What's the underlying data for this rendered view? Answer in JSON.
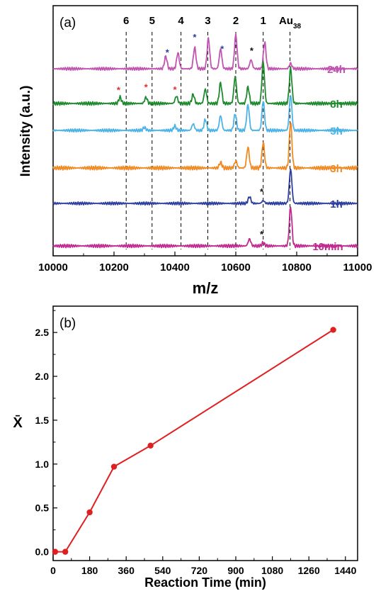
{
  "chart_data": [
    {
      "panel": "(a)",
      "type": "line",
      "xlabel": "m/z",
      "ylabel": "Intensity (a.u.)",
      "xlim": [
        10000,
        11000
      ],
      "x_ticks": [
        "10000",
        "10200",
        "10400",
        "10600",
        "10800",
        "11000"
      ],
      "grid": false,
      "peak_markers": [
        {
          "label": "6",
          "x": 10240
        },
        {
          "label": "5",
          "x": 10325
        },
        {
          "label": "4",
          "x": 10420
        },
        {
          "label": "3",
          "x": 10508
        },
        {
          "label": "2",
          "x": 10600
        },
        {
          "label": "1",
          "x": 10690
        },
        {
          "label": "Au",
          "sub": "38",
          "x": 10778
        }
      ],
      "series": [
        {
          "name": "24h",
          "color": "#c054b0",
          "peaks": [
            [
              10370,
              0.35
            ],
            [
              10410,
              0.45
            ],
            [
              10465,
              0.6
            ],
            [
              10510,
              0.85
            ],
            [
              10550,
              0.55
            ],
            [
              10600,
              0.95
            ],
            [
              10650,
              0.25
            ],
            [
              10695,
              0.75
            ],
            [
              10780,
              0.15
            ]
          ]
        },
        {
          "name": "8h",
          "color": "#1e8a2e",
          "peaks": [
            [
              10220,
              0.15
            ],
            [
              10305,
              0.15
            ],
            [
              10405,
              0.18
            ],
            [
              10460,
              0.22
            ],
            [
              10500,
              0.35
            ],
            [
              10550,
              0.5
            ],
            [
              10598,
              0.65
            ],
            [
              10640,
              0.4
            ],
            [
              10690,
              1.0
            ],
            [
              10780,
              0.85
            ]
          ]
        },
        {
          "name": "5h",
          "color": "#4db3e6",
          "peaks": [
            [
              10300,
              0.08
            ],
            [
              10400,
              0.12
            ],
            [
              10460,
              0.18
            ],
            [
              10500,
              0.3
            ],
            [
              10550,
              0.4
            ],
            [
              10598,
              0.45
            ],
            [
              10640,
              0.7
            ],
            [
              10690,
              0.8
            ],
            [
              10780,
              0.95
            ]
          ]
        },
        {
          "name": "3h",
          "color": "#f08a24",
          "peaks": [
            [
              10550,
              0.12
            ],
            [
              10600,
              0.15
            ],
            [
              10640,
              0.45
            ],
            [
              10690,
              0.55
            ],
            [
              10780,
              1.0
            ]
          ]
        },
        {
          "name": "1h",
          "color": "#2c3e9e",
          "peaks": [
            [
              10645,
              0.2
            ],
            [
              10690,
              0.08
            ],
            [
              10780,
              1.0
            ]
          ]
        },
        {
          "name": "10min",
          "color": "#c02a8f",
          "peaks": [
            [
              10645,
              0.18
            ],
            [
              10690,
              0.08
            ],
            [
              10780,
              1.0
            ]
          ]
        }
      ],
      "asterisks": [
        {
          "color": "#2c3e9e",
          "x": 10375,
          "series": "24h"
        },
        {
          "color": "#2c3e9e",
          "x": 10465,
          "series": "24h"
        },
        {
          "color": "#2c3e9e",
          "x": 10555,
          "series": "24h"
        },
        {
          "color": "#111111",
          "x": 10652,
          "series": "24h"
        },
        {
          "color": "#e03030",
          "x": 10215,
          "series": "8h"
        },
        {
          "color": "#e03030",
          "x": 10305,
          "series": "8h"
        },
        {
          "color": "#e03030",
          "x": 10400,
          "series": "8h"
        },
        {
          "color": "#111111",
          "x": 10685,
          "series": "1h"
        },
        {
          "color": "#111111",
          "x": 10685,
          "series": "10min"
        }
      ]
    },
    {
      "panel": "(b)",
      "type": "scatter",
      "xlabel": "Reaction Time (min)",
      "ylabel": "X̄",
      "xlim": [
        0,
        1500
      ],
      "ylim": [
        -0.1,
        2.8
      ],
      "x_ticks": [
        0,
        180,
        360,
        540,
        720,
        900,
        1080,
        1260,
        1440
      ],
      "y_ticks": [
        "0.0",
        "0.5",
        "1.0",
        "1.5",
        "2.0",
        "2.5"
      ],
      "grid": false,
      "series": [
        {
          "color": "#e02020",
          "x": [
            10,
            60,
            180,
            300,
            480,
            1380
          ],
          "y": [
            0.0,
            0.0,
            0.45,
            0.97,
            1.21,
            2.53
          ]
        }
      ]
    }
  ]
}
